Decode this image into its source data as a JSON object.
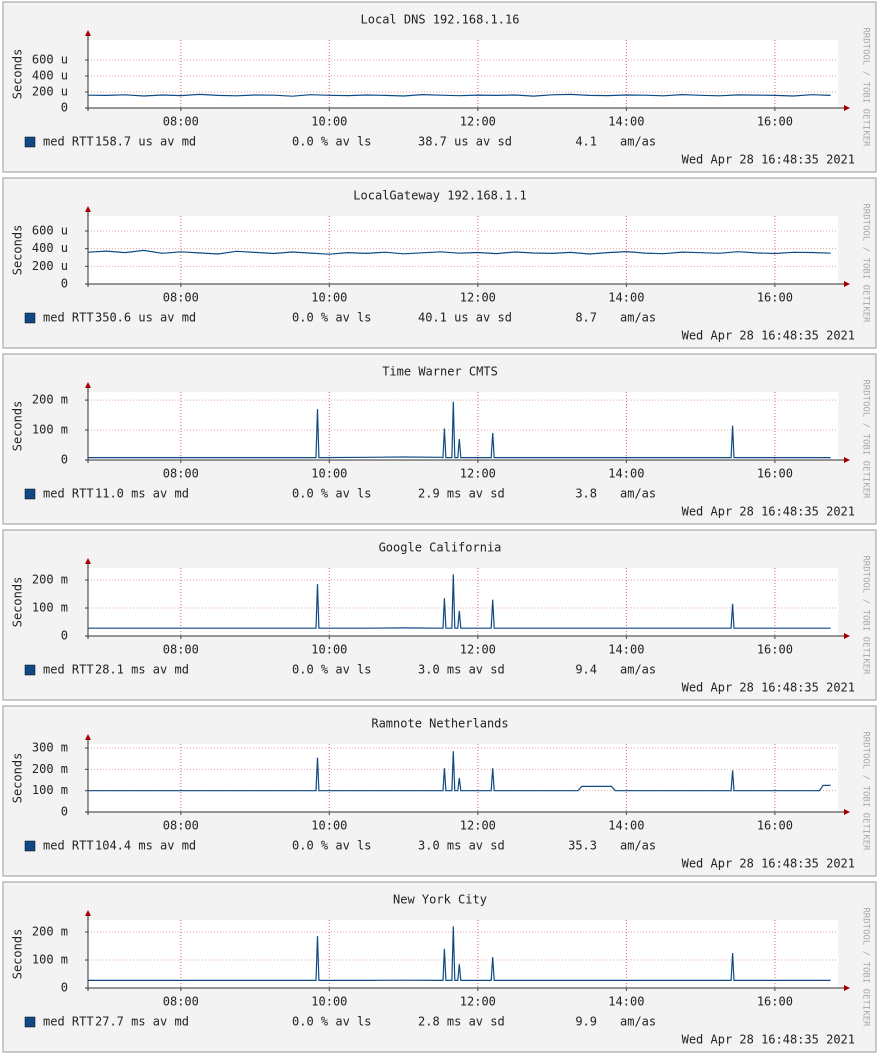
{
  "chart_data": [
    {
      "type": "line",
      "title": "Local DNS 192.168.1.16",
      "y_label": "Seconds",
      "watermark": "RRDTOOL / TOBI OETIKER",
      "timestamp": "Wed Apr 28 16:48:35 2021",
      "stats": [
        "158.7 us av md",
        "0.0 % av ls",
        "38.7 us av sd",
        "4.1",
        "am/as"
      ],
      "x": [
        6.75,
        7,
        7.25,
        7.5,
        7.75,
        8,
        8.25,
        8.5,
        8.75,
        9,
        9.25,
        9.5,
        9.75,
        10,
        10.25,
        10.5,
        10.75,
        11,
        11.25,
        11.5,
        11.75,
        12,
        12.25,
        12.5,
        12.75,
        13,
        13.25,
        13.5,
        13.75,
        14,
        14.25,
        14.5,
        14.75,
        15,
        15.25,
        15.5,
        15.75,
        16,
        16.25,
        16.5,
        16.75
      ],
      "series": [
        {
          "name": "med RTT",
          "color": "#0f4a85",
          "values": [
            160,
            158,
            165,
            150,
            162,
            155,
            170,
            158,
            152,
            163,
            160,
            148,
            166,
            159,
            155,
            162,
            157,
            150,
            168,
            160,
            154,
            161,
            158,
            163,
            149,
            165,
            170,
            158,
            155,
            162,
            160,
            153,
            167,
            159,
            152,
            164,
            161,
            157,
            150,
            166,
            158
          ]
        }
      ],
      "xlim": [
        6.75,
        16.85
      ],
      "ylim": [
        0,
        850
      ],
      "xticks": [
        {
          "value": 8,
          "label": "08:00"
        },
        {
          "value": 10,
          "label": "10:00"
        },
        {
          "value": 12,
          "label": "12:00"
        },
        {
          "value": 14,
          "label": "14:00"
        },
        {
          "value": 16,
          "label": "16:00"
        }
      ],
      "yticks": [
        0,
        {
          "value": 200,
          "label": "200 u"
        },
        {
          "value": 400,
          "label": "400 u"
        },
        {
          "value": 600,
          "label": "600 u"
        }
      ],
      "grid": true
    },
    {
      "type": "line",
      "title": "LocalGateway 192.168.1.1",
      "y_label": "Seconds",
      "watermark": "RRDTOOL / TOBI OETIKER",
      "timestamp": "Wed Apr 28 16:48:35 2021",
      "stats": [
        "350.6 us av md",
        "0.0 % av ls",
        "40.1 us av sd",
        "8.7",
        "am/as"
      ],
      "x": [
        6.75,
        7,
        7.25,
        7.5,
        7.75,
        8,
        8.25,
        8.5,
        8.75,
        9,
        9.25,
        9.5,
        9.75,
        10,
        10.25,
        10.5,
        10.75,
        11,
        11.25,
        11.5,
        11.75,
        12,
        12.25,
        12.5,
        12.75,
        13,
        13.25,
        13.5,
        13.75,
        14,
        14.25,
        14.5,
        14.75,
        15,
        15.25,
        15.5,
        15.75,
        16,
        16.25,
        16.5,
        16.75
      ],
      "series": [
        {
          "name": "med RTT",
          "color": "#0f4a85",
          "values": [
            360,
            372,
            355,
            380,
            348,
            365,
            352,
            340,
            370,
            358,
            345,
            362,
            350,
            338,
            355,
            347,
            360,
            342,
            353,
            365,
            349,
            357,
            344,
            362,
            351,
            346,
            358,
            340,
            355,
            367,
            350,
            343,
            361,
            354,
            348,
            366,
            352,
            345,
            359,
            357,
            349
          ]
        }
      ],
      "xlim": [
        6.75,
        16.85
      ],
      "ylim": [
        0,
        770
      ],
      "xticks": [
        {
          "value": 8,
          "label": "08:00"
        },
        {
          "value": 10,
          "label": "10:00"
        },
        {
          "value": 12,
          "label": "12:00"
        },
        {
          "value": 14,
          "label": "14:00"
        },
        {
          "value": 16,
          "label": "16:00"
        }
      ],
      "yticks": [
        0,
        {
          "value": 200,
          "label": "200 u"
        },
        {
          "value": 400,
          "label": "400 u"
        },
        {
          "value": 600,
          "label": "600 u"
        }
      ],
      "grid": true
    },
    {
      "type": "line",
      "title": "Time Warner CMTS",
      "y_label": "Seconds",
      "watermark": "RRDTOOL / TOBI OETIKER",
      "timestamp": "Wed Apr 28 16:48:35 2021",
      "stats": [
        "11.0 ms av md",
        "0.0 % av ls",
        "2.9 ms av sd",
        "3.8",
        "am/as"
      ],
      "x": [
        6.75,
        7.5,
        8.25,
        9,
        9.5,
        9.82,
        9.84,
        9.86,
        10.5,
        11,
        11.5,
        11.53,
        11.55,
        11.57,
        11.65,
        11.67,
        11.69,
        11.73,
        11.75,
        11.77,
        12,
        12.18,
        12.2,
        12.22,
        13,
        14,
        15,
        15.41,
        15.43,
        15.45,
        16,
        16.75
      ],
      "series": [
        {
          "name": "med RTT",
          "color": "#0f4a85",
          "values": [
            8,
            8,
            8,
            8,
            8,
            8,
            170,
            8,
            9,
            10,
            9,
            8,
            105,
            8,
            8,
            195,
            8,
            8,
            70,
            8,
            8,
            8,
            90,
            8,
            8,
            8,
            8,
            8,
            115,
            8,
            8,
            8
          ]
        }
      ],
      "xlim": [
        6.75,
        16.85
      ],
      "ylim": [
        0,
        227
      ],
      "xticks": [
        {
          "value": 8,
          "label": "08:00"
        },
        {
          "value": 10,
          "label": "10:00"
        },
        {
          "value": 12,
          "label": "12:00"
        },
        {
          "value": 14,
          "label": "14:00"
        },
        {
          "value": 16,
          "label": "16:00"
        }
      ],
      "yticks": [
        0,
        {
          "value": 100,
          "label": "100 m"
        },
        {
          "value": 200,
          "label": "200 m"
        }
      ],
      "grid": true
    },
    {
      "type": "line",
      "title": "Google California",
      "y_label": "Seconds",
      "watermark": "RRDTOOL / TOBI OETIKER",
      "timestamp": "Wed Apr 28 16:48:35 2021",
      "stats": [
        "28.1 ms av md",
        "0.0 % av ls",
        "3.0 ms av sd",
        "9.4",
        "am/as"
      ],
      "x": [
        6.75,
        7.5,
        8.25,
        9,
        9.5,
        9.82,
        9.84,
        9.86,
        10.5,
        11,
        11.5,
        11.53,
        11.55,
        11.57,
        11.65,
        11.67,
        11.69,
        11.73,
        11.75,
        11.77,
        12,
        12.18,
        12.2,
        12.22,
        13,
        14,
        15,
        15.41,
        15.43,
        15.45,
        16,
        16.75
      ],
      "series": [
        {
          "name": "med RTT",
          "color": "#0f4a85",
          "values": [
            28,
            28,
            28,
            28,
            28,
            28,
            185,
            28,
            28,
            29,
            28,
            28,
            135,
            28,
            28,
            220,
            28,
            28,
            90,
            28,
            28,
            28,
            130,
            28,
            28,
            28,
            28,
            28,
            115,
            28,
            28,
            28
          ]
        }
      ],
      "xlim": [
        6.75,
        16.85
      ],
      "ylim": [
        0,
        243
      ],
      "xticks": [
        {
          "value": 8,
          "label": "08:00"
        },
        {
          "value": 10,
          "label": "10:00"
        },
        {
          "value": 12,
          "label": "12:00"
        },
        {
          "value": 14,
          "label": "14:00"
        },
        {
          "value": 16,
          "label": "16:00"
        }
      ],
      "yticks": [
        0,
        {
          "value": 100,
          "label": "100 m"
        },
        {
          "value": 200,
          "label": "200 m"
        }
      ],
      "grid": true
    },
    {
      "type": "line",
      "title": "Ramnote Netherlands",
      "y_label": "Seconds",
      "watermark": "RRDTOOL / TOBI OETIKER",
      "timestamp": "Wed Apr 28 16:48:35 2021",
      "stats": [
        "104.4 ms av md",
        "0.0 % av ls",
        "3.0 ms av sd",
        "35.3",
        "am/as"
      ],
      "x": [
        6.75,
        7.5,
        8.25,
        9,
        9.5,
        9.82,
        9.84,
        9.86,
        10.5,
        11,
        11.5,
        11.53,
        11.55,
        11.57,
        11.65,
        11.67,
        11.69,
        11.73,
        11.75,
        11.77,
        12,
        12.18,
        12.2,
        12.22,
        13,
        13.35,
        13.4,
        13.8,
        13.85,
        14,
        15,
        15.41,
        15.43,
        15.45,
        16,
        16.6,
        16.65,
        16.75
      ],
      "series": [
        {
          "name": "med RTT",
          "color": "#0f4a85",
          "values": [
            100,
            100,
            100,
            100,
            100,
            100,
            255,
            100,
            100,
            100,
            100,
            100,
            205,
            100,
            100,
            285,
            100,
            100,
            160,
            100,
            100,
            100,
            205,
            100,
            100,
            100,
            120,
            120,
            100,
            100,
            100,
            100,
            195,
            100,
            100,
            100,
            125,
            125
          ]
        }
      ],
      "xlim": [
        6.75,
        16.85
      ],
      "ylim": [
        0,
        319
      ],
      "xticks": [
        {
          "value": 8,
          "label": "08:00"
        },
        {
          "value": 10,
          "label": "10:00"
        },
        {
          "value": 12,
          "label": "12:00"
        },
        {
          "value": 14,
          "label": "14:00"
        },
        {
          "value": 16,
          "label": "16:00"
        }
      ],
      "yticks": [
        0,
        {
          "value": 100,
          "label": "100 m"
        },
        {
          "value": 200,
          "label": "200 m"
        },
        {
          "value": 300,
          "label": "300 m"
        }
      ],
      "grid": true
    },
    {
      "type": "line",
      "title": "New York City",
      "y_label": "Seconds",
      "watermark": "RRDTOOL / TOBI OETIKER",
      "timestamp": "Wed Apr 28 16:48:35 2021",
      "stats": [
        "27.7 ms av md",
        "0.0 % av ls",
        "2.8 ms av sd",
        "9.9",
        "am/as"
      ],
      "x": [
        6.75,
        7.5,
        8.25,
        9,
        9.5,
        9.82,
        9.84,
        9.86,
        10.5,
        11,
        11.5,
        11.53,
        11.55,
        11.57,
        11.65,
        11.67,
        11.69,
        11.73,
        11.75,
        11.77,
        12,
        12.18,
        12.2,
        12.22,
        13,
        14,
        15,
        15.41,
        15.43,
        15.45,
        16,
        16.75
      ],
      "series": [
        {
          "name": "med RTT",
          "color": "#0f4a85",
          "values": [
            27,
            27,
            27,
            27,
            27,
            27,
            185,
            27,
            27,
            28,
            27,
            27,
            140,
            27,
            27,
            220,
            27,
            27,
            85,
            27,
            27,
            27,
            110,
            27,
            27,
            27,
            27,
            27,
            125,
            27,
            27,
            27
          ]
        }
      ],
      "xlim": [
        6.75,
        16.85
      ],
      "ylim": [
        0,
        243
      ],
      "xticks": [
        {
          "value": 8,
          "label": "08:00"
        },
        {
          "value": 10,
          "label": "10:00"
        },
        {
          "value": 12,
          "label": "12:00"
        },
        {
          "value": 14,
          "label": "14:00"
        },
        {
          "value": 16,
          "label": "16:00"
        }
      ],
      "yticks": [
        0,
        {
          "value": 100,
          "label": "100 m"
        },
        {
          "value": 200,
          "label": "200 m"
        }
      ],
      "grid": true
    }
  ]
}
